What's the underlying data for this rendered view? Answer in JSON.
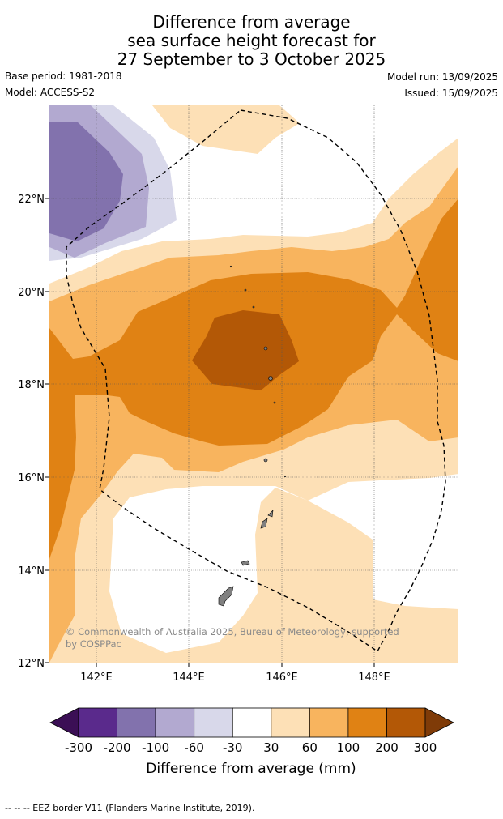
{
  "title": {
    "line1": "Difference from average",
    "line2": "sea surface height forecast for",
    "line3": "27 September to 3 October 2025"
  },
  "meta": {
    "base_period": "Base period: 1981-2018",
    "model": "Model: ACCESS-S2",
    "model_run": "Model run: 13/09/2025",
    "issued": "Issued: 15/09/2025"
  },
  "map": {
    "lat_ticks": [
      "22°N",
      "20°N",
      "18°N",
      "16°N",
      "14°N",
      "12°N"
    ],
    "lon_ticks": [
      "142°E",
      "144°E",
      "146°E",
      "148°E"
    ],
    "copyright": "© Commonwealth of Australia 2025, Bureau of Meteorology, supported by COSPPac",
    "copyright_line1": "© Commonwealth of Australia 2025, Bureau of Meteorology, supported",
    "copyright_line2": "by COSPPac",
    "lat_range": [
      12,
      24
    ],
    "lon_range": [
      141,
      149.8
    ],
    "gridlines": true,
    "colors": {
      "lt_-300": "#3b0f55",
      "-300_-200": "#5a2a8c",
      "-200_-100": "#8272ad",
      "-100_-60": "#b2a9d0",
      "-60_-30": "#d8d8ea",
      "-30_30": "#ffffff",
      "30_60": "#fde0b6",
      "60_100": "#f8b45e",
      "100_200": "#e08214",
      "200_300": "#b35806",
      "gt_300": "#7f3b08"
    }
  },
  "colorbar": {
    "label": "Difference from average (mm)",
    "ticks": [
      "-300",
      "-200",
      "-100",
      "-60",
      "-30",
      "30",
      "60",
      "100",
      "200",
      "300"
    ],
    "colors": [
      "#5a2a8c",
      "#8272ad",
      "#b2a9d0",
      "#d8d8ea",
      "#ffffff",
      "#fde0b6",
      "#f8b45e",
      "#e08214",
      "#b35806"
    ],
    "under_color": "#3b0f55",
    "over_color": "#7f3b08"
  },
  "footer": {
    "legend": "--  --  -- EEZ border V11 (Flanders Marine Institute, 2019)."
  }
}
